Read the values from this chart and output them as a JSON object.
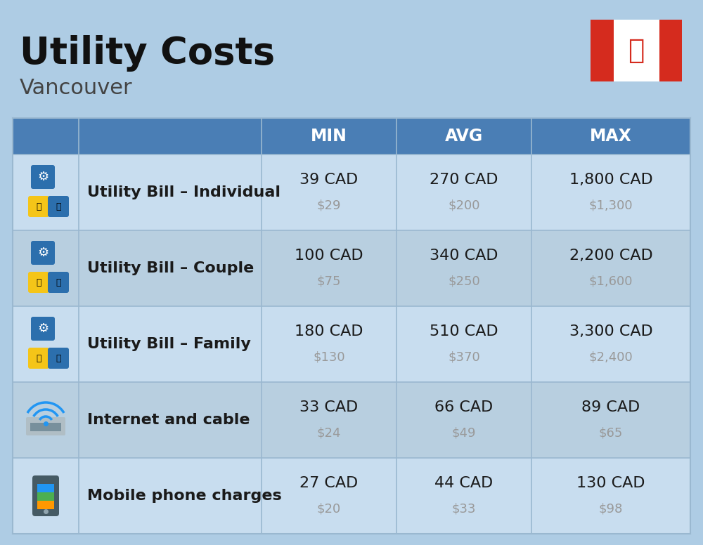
{
  "title": "Utility Costs",
  "subtitle": "Vancouver",
  "background_color": "#aecce4",
  "header_color": "#4a7eb5",
  "header_text_color": "#ffffff",
  "row_bg_light": "#c8ddef",
  "row_bg_dark": "#b8cfe0",
  "separator_color": "#9ab8d0",
  "title_color": "#111111",
  "subtitle_color": "#444444",
  "main_text_color": "#1a1a1a",
  "sub_text_color": "#999999",
  "headers": [
    "MIN",
    "AVG",
    "MAX"
  ],
  "rows": [
    {
      "label": "Utility Bill – Individual",
      "min_cad": "39 CAD",
      "min_usd": "$29",
      "avg_cad": "270 CAD",
      "avg_usd": "$200",
      "max_cad": "1,800 CAD",
      "max_usd": "$1,300",
      "icon": "utility"
    },
    {
      "label": "Utility Bill – Couple",
      "min_cad": "100 CAD",
      "min_usd": "$75",
      "avg_cad": "340 CAD",
      "avg_usd": "$250",
      "max_cad": "2,200 CAD",
      "max_usd": "$1,600",
      "icon": "utility"
    },
    {
      "label": "Utility Bill – Family",
      "min_cad": "180 CAD",
      "min_usd": "$130",
      "avg_cad": "510 CAD",
      "avg_usd": "$370",
      "max_cad": "3,300 CAD",
      "max_usd": "$2,400",
      "icon": "utility"
    },
    {
      "label": "Internet and cable",
      "min_cad": "33 CAD",
      "min_usd": "$24",
      "avg_cad": "66 CAD",
      "avg_usd": "$49",
      "max_cad": "89 CAD",
      "max_usd": "$65",
      "icon": "internet"
    },
    {
      "label": "Mobile phone charges",
      "min_cad": "27 CAD",
      "min_usd": "$20",
      "avg_cad": "44 CAD",
      "avg_usd": "$33",
      "max_cad": "130 CAD",
      "max_usd": "$98",
      "icon": "phone"
    }
  ]
}
